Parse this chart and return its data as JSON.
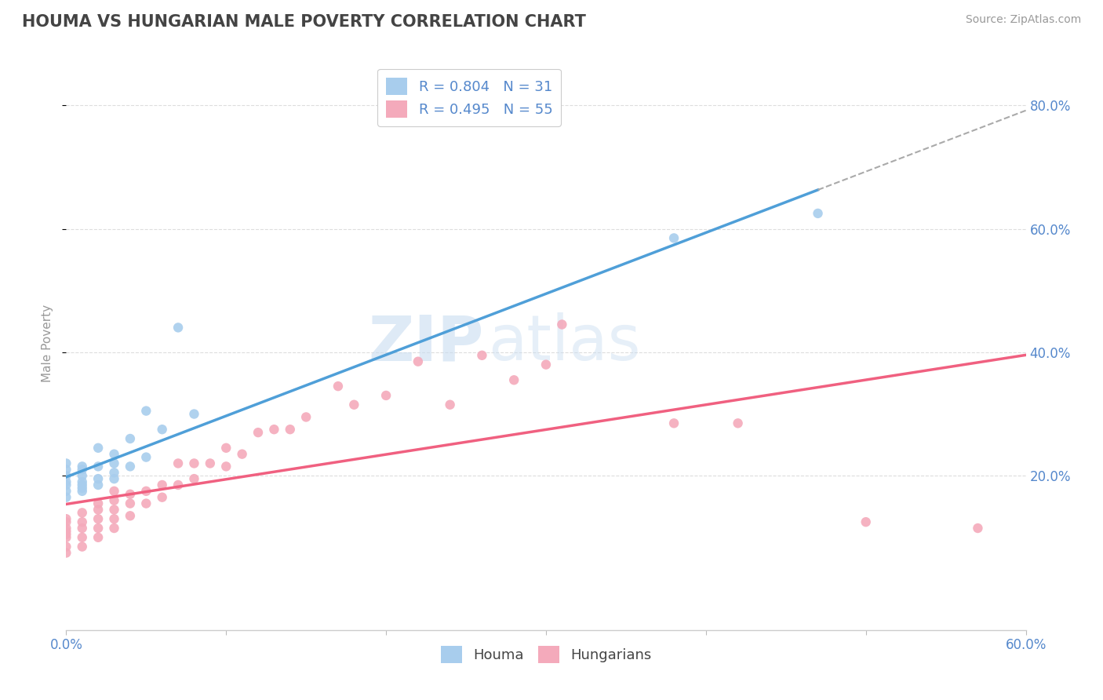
{
  "title": "HOUMA VS HUNGARIAN MALE POVERTY CORRELATION CHART",
  "source_text": "Source: ZipAtlas.com",
  "ylabel": "Male Poverty",
  "xlim": [
    0.0,
    0.6
  ],
  "ylim": [
    -0.05,
    0.88
  ],
  "xtick_labels": [
    "0.0%",
    "",
    "",
    "",
    "",
    "",
    "60.0%"
  ],
  "xtick_values": [
    0.0,
    0.1,
    0.2,
    0.3,
    0.4,
    0.5,
    0.6
  ],
  "ytick_labels": [
    "20.0%",
    "40.0%",
    "60.0%",
    "80.0%"
  ],
  "ytick_values": [
    0.2,
    0.4,
    0.6,
    0.8
  ],
  "houma_color": "#A8CDED",
  "hungarian_color": "#F4AABB",
  "houma_line_color": "#4F9FD8",
  "hungarian_line_color": "#F06080",
  "legend_houma_R": "0.804",
  "legend_houma_N": 31,
  "legend_hungarian_R": "0.495",
  "legend_hungarian_N": 55,
  "watermark_zip": "ZIP",
  "watermark_atlas": "atlas",
  "background_color": "#FFFFFF",
  "grid_color": "#DDDDDD",
  "title_color": "#444444",
  "axis_label_color": "#5588CC",
  "tick_label_color": "#5588CC",
  "houma_x": [
    0.0,
    0.0,
    0.0,
    0.0,
    0.0,
    0.0,
    0.0,
    0.01,
    0.01,
    0.01,
    0.01,
    0.01,
    0.01,
    0.01,
    0.02,
    0.02,
    0.02,
    0.02,
    0.03,
    0.03,
    0.03,
    0.03,
    0.04,
    0.04,
    0.05,
    0.05,
    0.06,
    0.07,
    0.08,
    0.38,
    0.47
  ],
  "houma_y": [
    0.175,
    0.165,
    0.185,
    0.19,
    0.2,
    0.21,
    0.22,
    0.175,
    0.18,
    0.185,
    0.19,
    0.2,
    0.21,
    0.215,
    0.185,
    0.195,
    0.215,
    0.245,
    0.195,
    0.205,
    0.22,
    0.235,
    0.215,
    0.26,
    0.23,
    0.305,
    0.275,
    0.44,
    0.3,
    0.585,
    0.625
  ],
  "hungarian_x": [
    0.0,
    0.0,
    0.0,
    0.0,
    0.0,
    0.0,
    0.0,
    0.0,
    0.01,
    0.01,
    0.01,
    0.01,
    0.01,
    0.02,
    0.02,
    0.02,
    0.02,
    0.02,
    0.03,
    0.03,
    0.03,
    0.03,
    0.03,
    0.04,
    0.04,
    0.04,
    0.05,
    0.05,
    0.06,
    0.06,
    0.07,
    0.07,
    0.08,
    0.08,
    0.09,
    0.1,
    0.1,
    0.11,
    0.12,
    0.13,
    0.14,
    0.15,
    0.17,
    0.18,
    0.2,
    0.22,
    0.24,
    0.26,
    0.28,
    0.3,
    0.31,
    0.38,
    0.42,
    0.5,
    0.57
  ],
  "hungarian_y": [
    0.075,
    0.085,
    0.1,
    0.105,
    0.11,
    0.115,
    0.125,
    0.13,
    0.085,
    0.1,
    0.115,
    0.125,
    0.14,
    0.1,
    0.115,
    0.13,
    0.145,
    0.155,
    0.115,
    0.13,
    0.145,
    0.16,
    0.175,
    0.135,
    0.155,
    0.17,
    0.155,
    0.175,
    0.165,
    0.185,
    0.185,
    0.22,
    0.195,
    0.22,
    0.22,
    0.215,
    0.245,
    0.235,
    0.27,
    0.275,
    0.275,
    0.295,
    0.345,
    0.315,
    0.33,
    0.385,
    0.315,
    0.395,
    0.355,
    0.38,
    0.445,
    0.285,
    0.285,
    0.125,
    0.115
  ]
}
